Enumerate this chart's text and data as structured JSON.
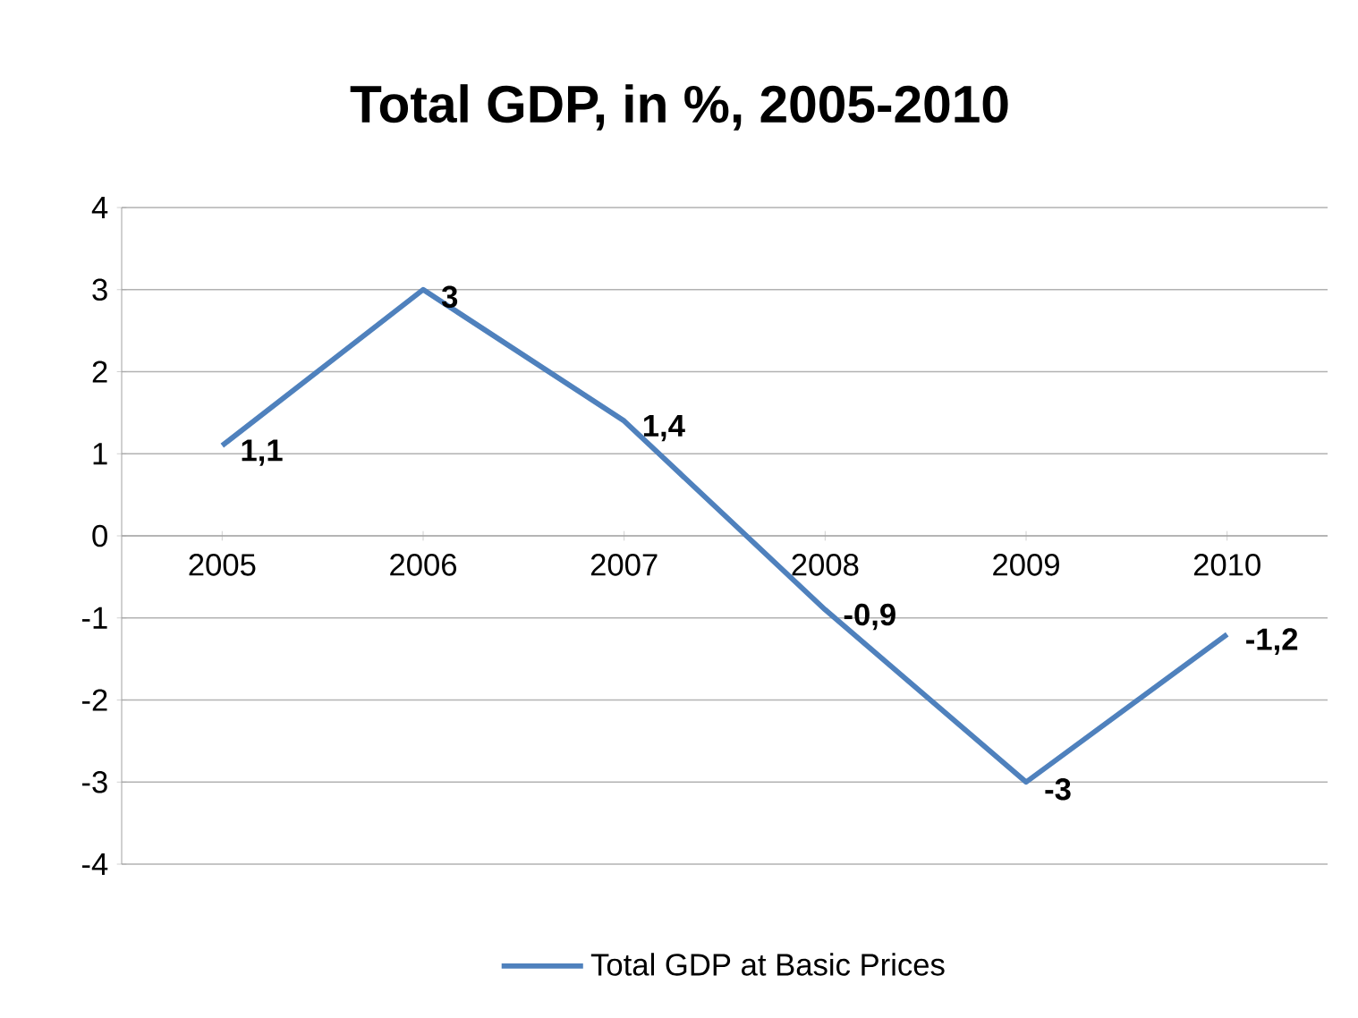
{
  "chart_data": {
    "type": "line",
    "title": "Total GDP, in %, 2005-2010",
    "categories": [
      "2005",
      "2006",
      "2007",
      "2008",
      "2009",
      "2010"
    ],
    "series": [
      {
        "name": "Total GDP at Basic Prices",
        "color": "#4f81bd",
        "values": [
          1.1,
          3,
          1.4,
          -0.9,
          -3,
          -1.2
        ],
        "value_labels": [
          "1,1",
          "3",
          "1,4",
          "-0,9",
          "-3",
          "-1,2"
        ]
      }
    ],
    "ylim": [
      -4,
      4
    ],
    "yticks": [
      -4,
      -3,
      -2,
      -1,
      0,
      1,
      2,
      3,
      4
    ],
    "grid": "y",
    "legend": "bottom",
    "marker": "none",
    "line_style": "solid"
  }
}
